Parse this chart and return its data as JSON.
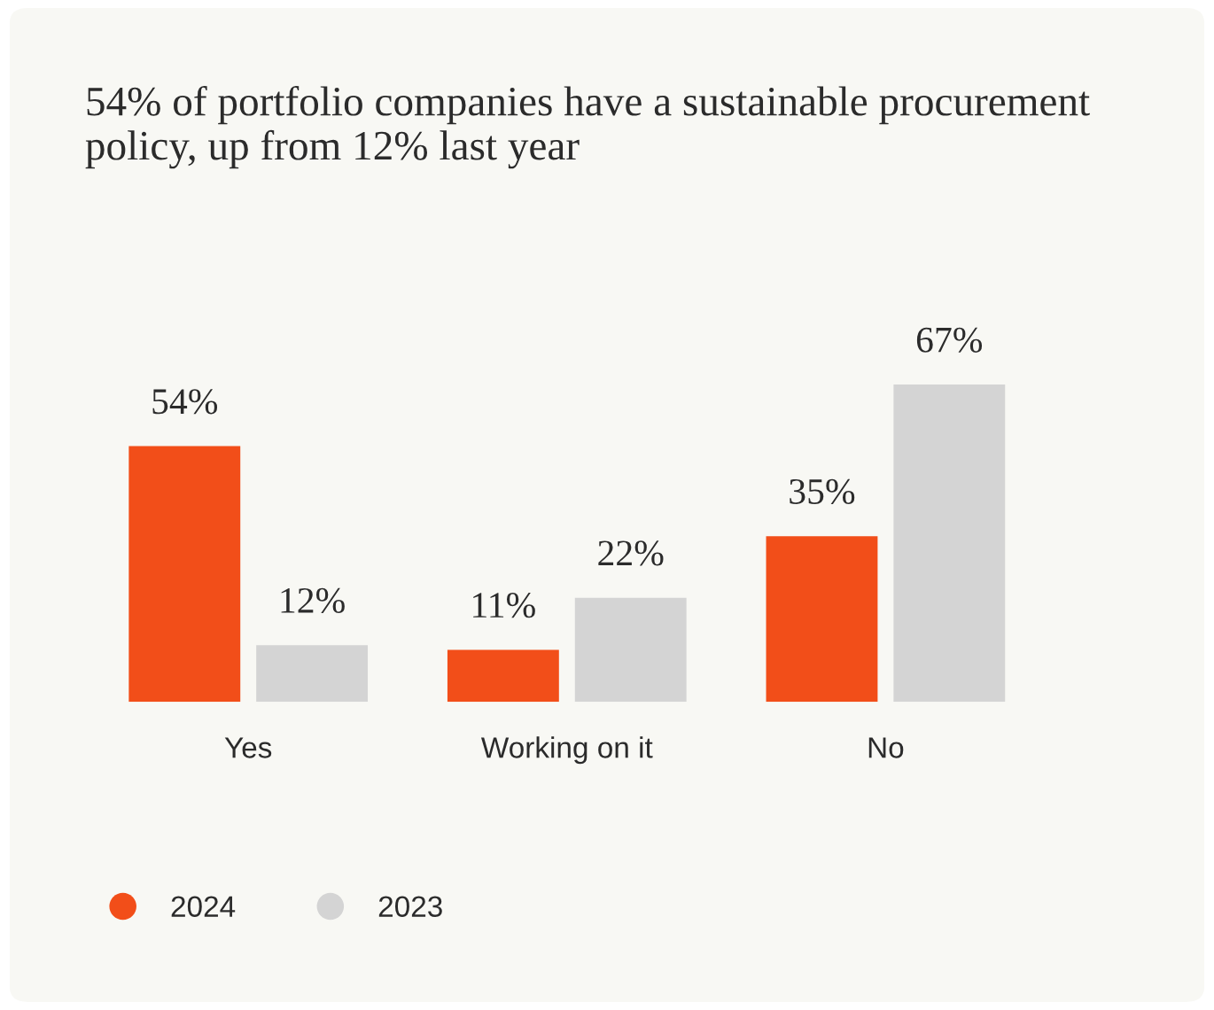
{
  "chart_data": {
    "type": "bar",
    "title": "54% of portfolio companies have a sustainable procurement policy, up from 12% last year",
    "categories": [
      "Yes",
      "Working on it",
      "No"
    ],
    "series": [
      {
        "name": "2024",
        "color": "#f24e19",
        "values": [
          54,
          11,
          35
        ],
        "value_labels": [
          "54%",
          "11%",
          "35%"
        ]
      },
      {
        "name": "2023",
        "color": "#d4d4d4",
        "values": [
          12,
          22,
          67
        ],
        "value_labels": [
          "12%",
          "22%",
          "67%"
        ]
      }
    ],
    "legend": "bottom left",
    "grid": false
  }
}
